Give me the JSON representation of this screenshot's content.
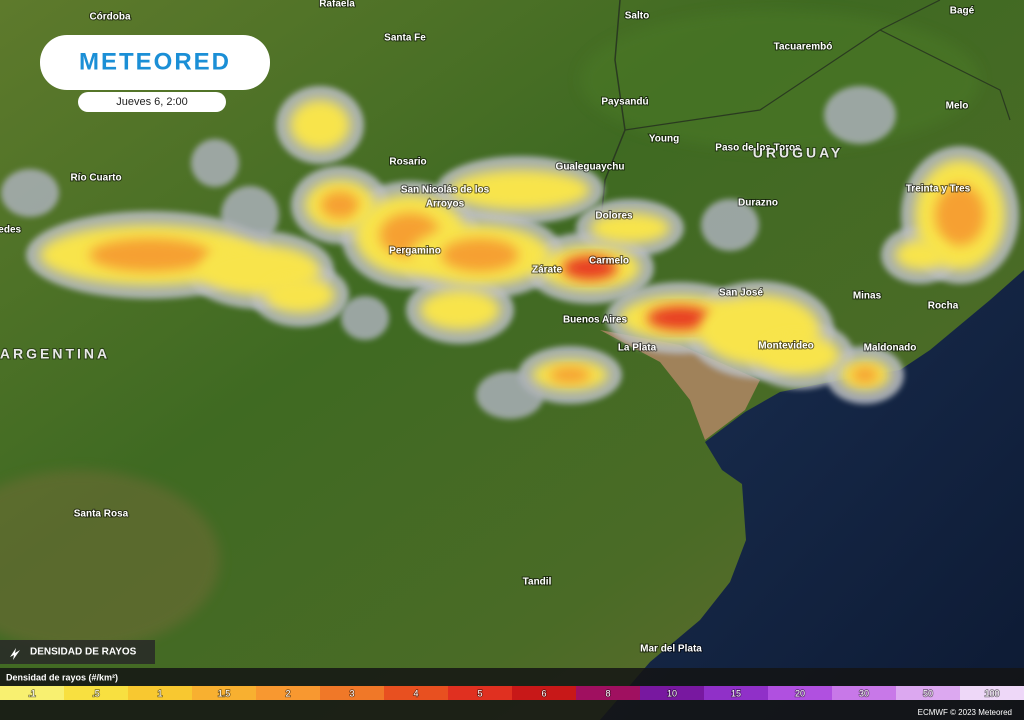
{
  "header": {
    "logo": "METEORED",
    "date": "Jueves 6, 2:00"
  },
  "map": {
    "cities": [
      "Córdoba",
      "Rafaela",
      "Santa Fe",
      "Salto",
      "Bagé",
      "Tacuarembó",
      "Paysandú",
      "Melo",
      "Young",
      "Paso de los Toros",
      "Rosario",
      "Gualeguaychu",
      "Río Cuarto",
      "Treinta y Tres",
      "San Nicolás de los",
      "Arroyos",
      "Durazno",
      "Dolores",
      "Mercedes",
      "Pergamino",
      "Zárate",
      "Carmelo",
      "San José",
      "Minas",
      "Rocha",
      "Buenos Aires",
      "La Plata",
      "Montevideo",
      "Maldonado",
      "Santa Rosa",
      "Tandil",
      "Mar del Plata"
    ],
    "countries": [
      "URUGUAY",
      "ARGENTINA"
    ]
  },
  "layer": {
    "name": "DENSIDAD DE RAYOS"
  },
  "legend": {
    "title": "Densidad de rayos (#/km²)",
    "ticks": [
      ".1",
      ".5",
      "1",
      "1.5",
      "2",
      "3",
      "4",
      "5",
      "6",
      "8",
      "10",
      "15",
      "20",
      "30",
      "50",
      "100"
    ]
  },
  "credit": "ECMWF © 2023 Meteored"
}
